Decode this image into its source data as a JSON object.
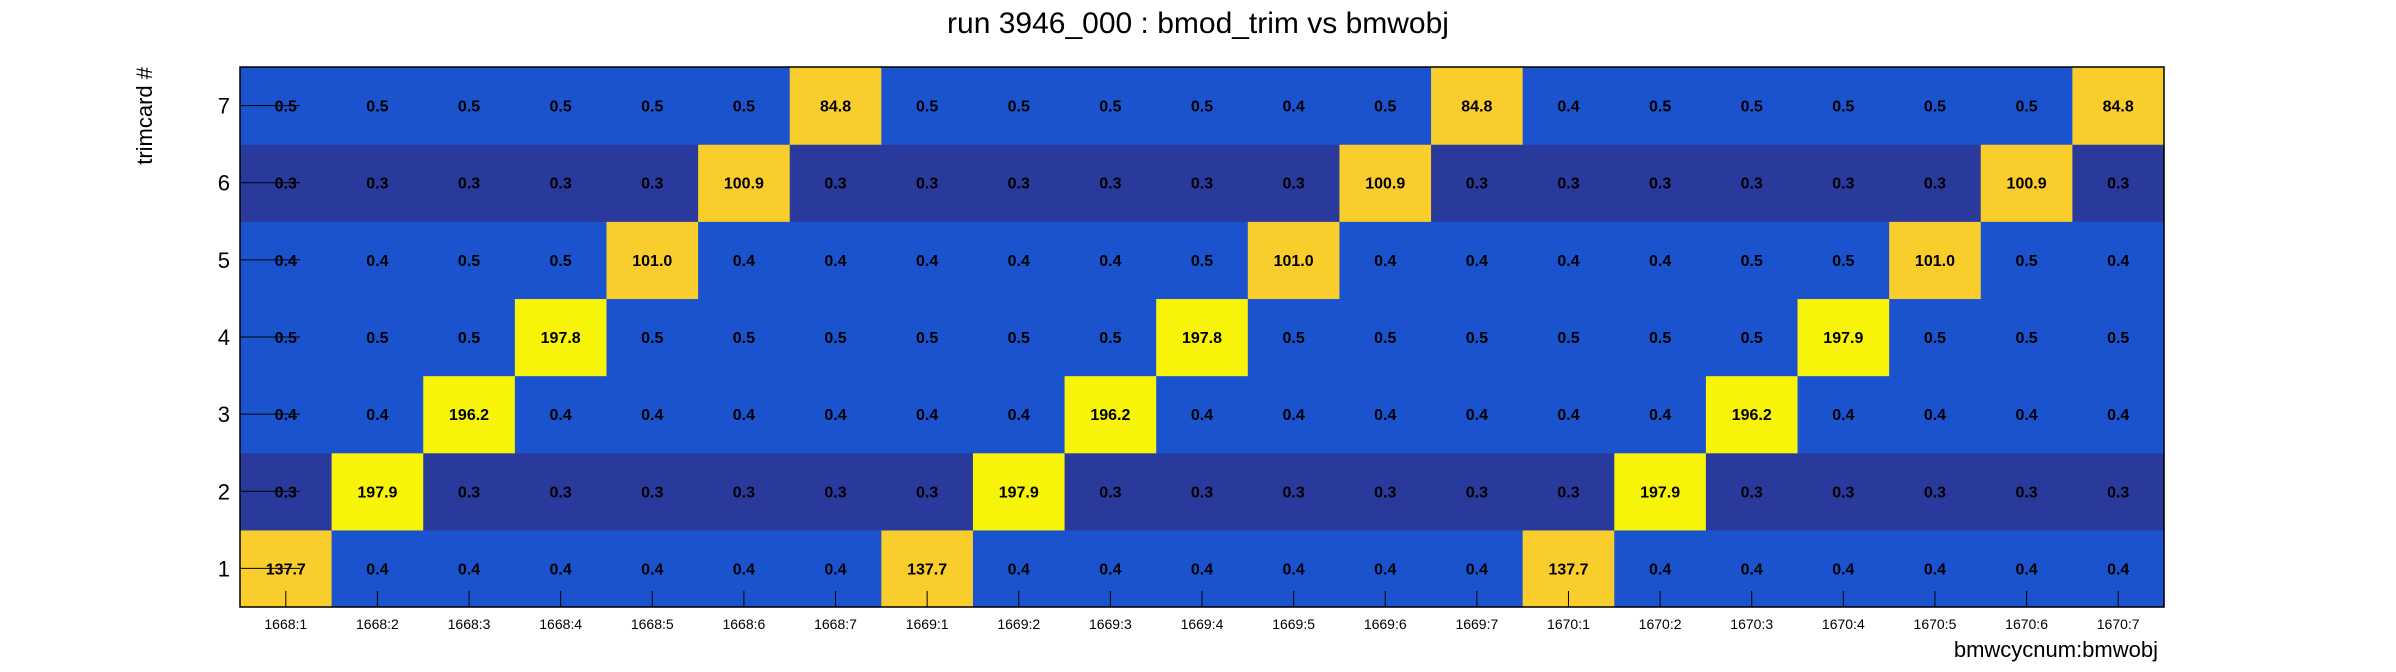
{
  "chart_data": {
    "type": "heatmap",
    "title": "run 3946_000 : bmod_trim vs bmwobj",
    "xlabel": "bmwcycnum:bmwobj",
    "ylabel": "trimcard #",
    "x_categories": [
      "1668:1",
      "1668:2",
      "1668:3",
      "1668:4",
      "1668:5",
      "1668:6",
      "1668:7",
      "1669:1",
      "1669:2",
      "1669:3",
      "1669:4",
      "1669:5",
      "1669:6",
      "1669:7",
      "1670:1",
      "1670:2",
      "1670:3",
      "1670:4",
      "1670:5",
      "1670:6",
      "1670:7"
    ],
    "y_categories": [
      "1",
      "2",
      "3",
      "4",
      "5",
      "6",
      "7"
    ],
    "values": [
      [
        137.7,
        0.4,
        0.4,
        0.4,
        0.4,
        0.4,
        0.4,
        137.7,
        0.4,
        0.4,
        0.4,
        0.4,
        0.4,
        0.4,
        137.7,
        0.4,
        0.4,
        0.4,
        0.4,
        0.4,
        0.4
      ],
      [
        0.3,
        197.9,
        0.3,
        0.3,
        0.3,
        0.3,
        0.3,
        0.3,
        197.9,
        0.3,
        0.3,
        0.3,
        0.3,
        0.3,
        0.3,
        197.9,
        0.3,
        0.3,
        0.3,
        0.3,
        0.3
      ],
      [
        0.4,
        0.4,
        196.2,
        0.4,
        0.4,
        0.4,
        0.4,
        0.4,
        0.4,
        196.2,
        0.4,
        0.4,
        0.4,
        0.4,
        0.4,
        0.4,
        196.2,
        0.4,
        0.4,
        0.4,
        0.4
      ],
      [
        0.5,
        0.5,
        0.5,
        197.8,
        0.5,
        0.5,
        0.5,
        0.5,
        0.5,
        0.5,
        197.8,
        0.5,
        0.5,
        0.5,
        0.5,
        0.5,
        0.5,
        197.9,
        0.5,
        0.5,
        0.5
      ],
      [
        0.4,
        0.4,
        0.5,
        0.5,
        101.0,
        0.4,
        0.4,
        0.4,
        0.4,
        0.4,
        0.5,
        101.0,
        0.4,
        0.4,
        0.4,
        0.4,
        0.5,
        0.5,
        101.0,
        0.5,
        0.4
      ],
      [
        0.3,
        0.3,
        0.3,
        0.3,
        0.3,
        100.9,
        0.3,
        0.3,
        0.3,
        0.3,
        0.3,
        0.3,
        100.9,
        0.3,
        0.3,
        0.3,
        0.3,
        0.3,
        0.3,
        100.9,
        0.3
      ],
      [
        0.5,
        0.5,
        0.5,
        0.5,
        0.5,
        0.5,
        84.8,
        0.5,
        0.5,
        0.5,
        0.5,
        0.4,
        0.5,
        84.8,
        0.4,
        0.5,
        0.5,
        0.5,
        0.5,
        0.5,
        84.8
      ]
    ],
    "colors": {
      "very_low": "#2a3a9c",
      "low": "#1b53cf",
      "mid": "#f8cd2c",
      "high": "#f7f40a"
    },
    "grid": false,
    "legend": "none"
  }
}
